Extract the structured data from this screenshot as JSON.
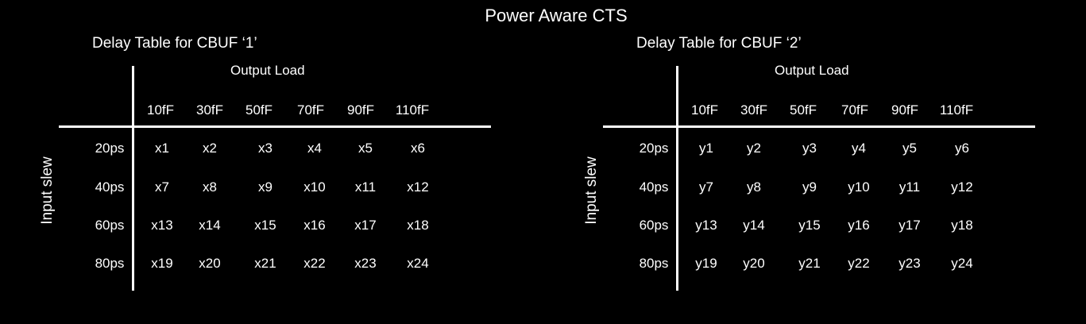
{
  "title": "Power Aware CTS",
  "tables": [
    {
      "title": "Delay Table for CBUF ‘1’",
      "column_group_label": "Output Load",
      "row_group_label": "Input slew",
      "columns": [
        "10fF",
        "30fF",
        "50fF",
        "70fF",
        "90fF",
        "110fF"
      ],
      "rows": [
        "20ps",
        "40ps",
        "60ps",
        "80ps"
      ],
      "cells": [
        [
          "x1",
          "x2",
          "x3",
          "x4",
          "x5",
          "x6"
        ],
        [
          "x7",
          "x8",
          "x9",
          "x10",
          "x11",
          "x12"
        ],
        [
          "x13",
          "x14",
          "x15",
          "x16",
          "x17",
          "x18"
        ],
        [
          "x19",
          "x20",
          "x21",
          "x22",
          "x23",
          "x24"
        ]
      ]
    },
    {
      "title": "Delay Table for CBUF ‘2’",
      "column_group_label": "Output Load",
      "row_group_label": "Input slew",
      "columns": [
        "10fF",
        "30fF",
        "50fF",
        "70fF",
        "90fF",
        "110fF"
      ],
      "rows": [
        "20ps",
        "40ps",
        "60ps",
        "80ps"
      ],
      "cells": [
        [
          "y1",
          "y2",
          "y3",
          "y4",
          "y5",
          "y6"
        ],
        [
          "y7",
          "y8",
          "y9",
          "y10",
          "y11",
          "y12"
        ],
        [
          "y13",
          "y14",
          "y15",
          "y16",
          "y17",
          "y18"
        ],
        [
          "y19",
          "y20",
          "y21",
          "y22",
          "y23",
          "y24"
        ]
      ]
    }
  ]
}
